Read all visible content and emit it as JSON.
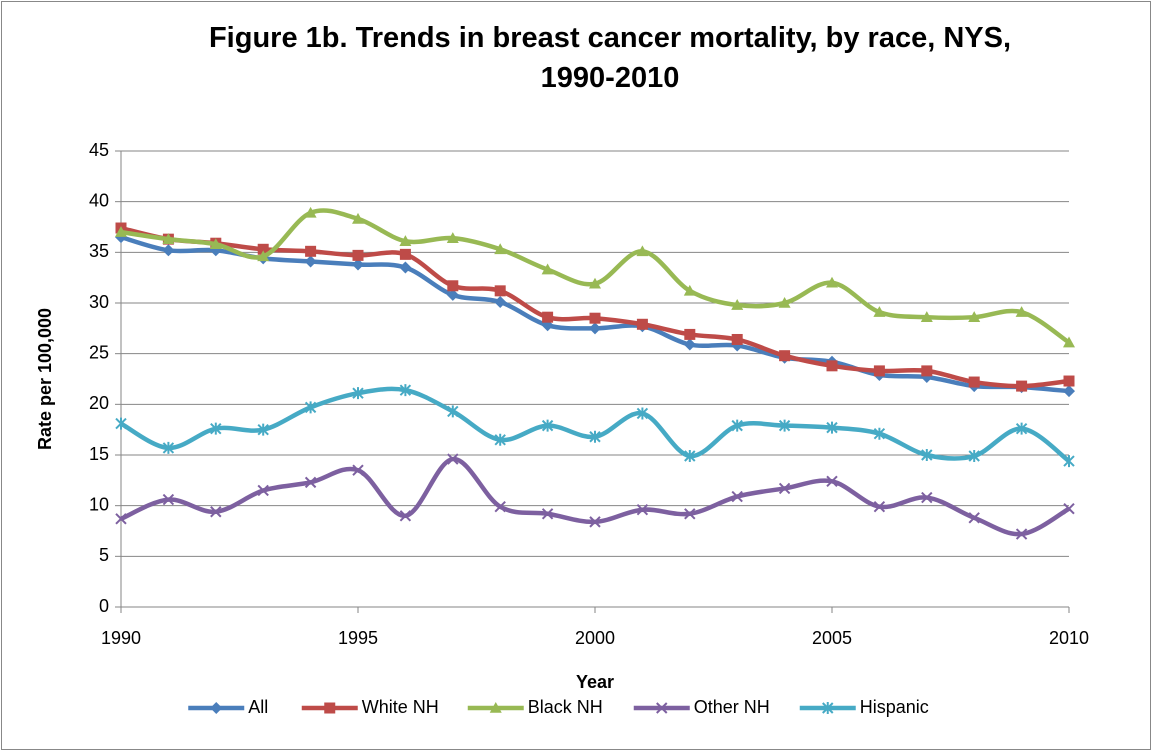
{
  "chart_data": {
    "type": "line",
    "title": "Figure 1b. Trends in breast cancer mortality, by race, NYS, 1990-2010",
    "x_label": "Year",
    "y_label": "Rate per 100,000",
    "x": [
      1990,
      1991,
      1992,
      1993,
      1994,
      1995,
      1996,
      1997,
      1998,
      1999,
      2000,
      2001,
      2002,
      2003,
      2004,
      2005,
      2006,
      2007,
      2008,
      2009,
      2010
    ],
    "xlim": [
      1990,
      2010
    ],
    "xticks": [
      1990,
      1995,
      2000,
      2005,
      2010
    ],
    "ylim": [
      0,
      45
    ],
    "yticks": [
      0,
      5,
      10,
      15,
      20,
      25,
      30,
      35,
      40,
      45
    ],
    "grid": true,
    "smooth": true,
    "legend": "bottom",
    "series": [
      {
        "name": "All",
        "color": "#4a7ebb",
        "marker": "diamond",
        "values": [
          36.5,
          35.2,
          35.2,
          34.4,
          34.1,
          33.8,
          33.5,
          30.8,
          30.1,
          27.8,
          27.5,
          27.7,
          25.9,
          25.8,
          24.6,
          24.2,
          22.9,
          22.7,
          21.8,
          21.7,
          21.3
        ]
      },
      {
        "name": "White NH",
        "color": "#be4b48",
        "marker": "square",
        "values": [
          37.4,
          36.3,
          35.9,
          35.3,
          35.1,
          34.7,
          34.8,
          31.7,
          31.2,
          28.6,
          28.5,
          27.9,
          26.9,
          26.4,
          24.8,
          23.8,
          23.3,
          23.3,
          22.2,
          21.8,
          22.3
        ]
      },
      {
        "name": "Black NH",
        "color": "#98b954",
        "marker": "triangle",
        "values": [
          37.0,
          36.3,
          35.8,
          34.6,
          38.9,
          38.3,
          36.1,
          36.4,
          35.3,
          33.3,
          31.9,
          35.1,
          31.2,
          29.8,
          30.0,
          32.0,
          29.1,
          28.6,
          28.6,
          29.1,
          26.1
        ]
      },
      {
        "name": "Other NH",
        "color": "#7d60a0",
        "marker": "x",
        "values": [
          8.7,
          10.6,
          9.4,
          11.5,
          12.3,
          13.5,
          9.0,
          14.6,
          9.9,
          9.2,
          8.4,
          9.6,
          9.2,
          10.9,
          11.7,
          12.4,
          9.9,
          10.8,
          8.8,
          7.2,
          9.7
        ]
      },
      {
        "name": "Hispanic",
        "color": "#46aac5",
        "marker": "star",
        "values": [
          18.1,
          15.7,
          17.6,
          17.5,
          19.7,
          21.1,
          21.4,
          19.3,
          16.5,
          17.9,
          16.8,
          19.1,
          14.9,
          17.9,
          17.9,
          17.7,
          17.1,
          15.0,
          14.9,
          17.6,
          14.4
        ]
      }
    ]
  }
}
